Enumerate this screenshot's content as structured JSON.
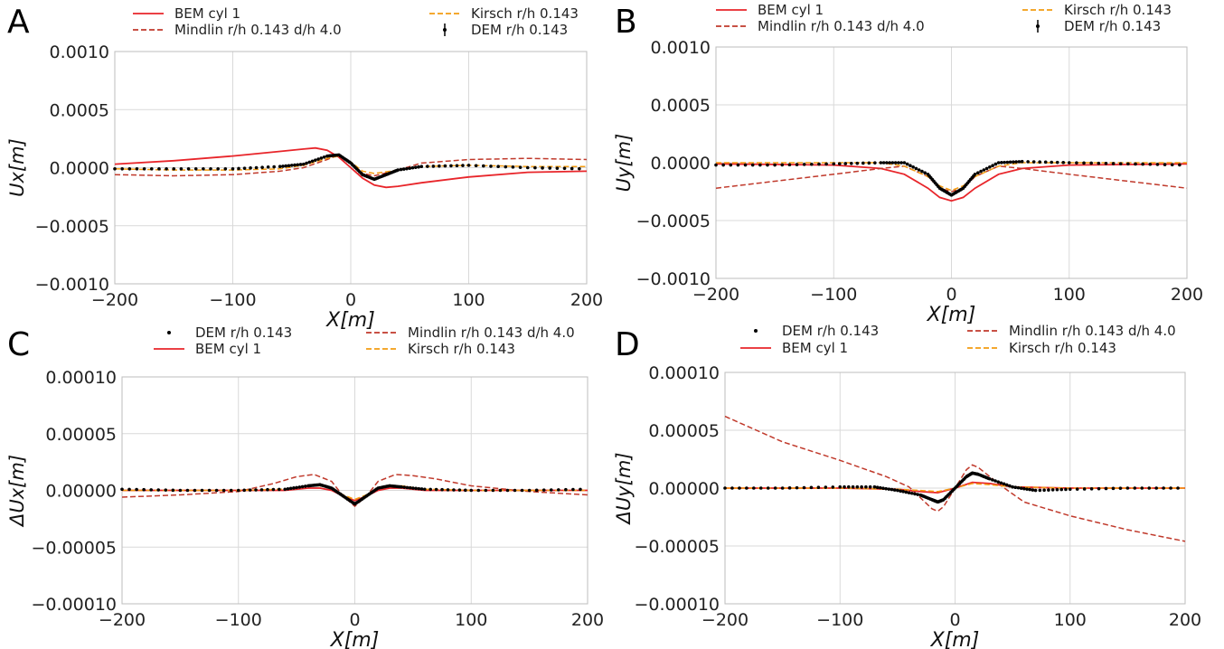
{
  "chart_data": [
    {
      "panel": "A",
      "type": "line",
      "xlabel": "X[m]",
      "ylabel": "Ux[m]",
      "xlim": [
        -200,
        200
      ],
      "ylim": [
        -0.001,
        0.001
      ],
      "xticks": [
        -200,
        -100,
        0,
        100,
        200
      ],
      "yticks": [
        -0.001,
        -0.0005,
        0.0,
        0.0005,
        0.001
      ],
      "ytick_labels": [
        "−0.0010",
        "−0.0005",
        "0.0000",
        "0.0005",
        "0.0010"
      ],
      "xtick_labels": [
        "−200",
        "−100",
        "0",
        "100",
        "200"
      ],
      "grid": true,
      "legend_layout": "two-column-top",
      "legend": [
        {
          "label": "BEM cyl 1",
          "style": "solid",
          "color": "#e8252a"
        },
        {
          "label": "Mindlin r/h 0.143 d/h 4.0",
          "style": "dashed",
          "color": "#c0392b"
        },
        {
          "label": "Kirsch r/h 0.143",
          "style": "dashed",
          "color": "#f39c12"
        },
        {
          "label": "DEM r/h 0.143",
          "style": "errorbar",
          "color": "#000000"
        }
      ],
      "series": [
        {
          "name": "BEM cyl 1",
          "style": "solid",
          "color": "#e8252a",
          "x": [
            -200,
            -150,
            -100,
            -60,
            -40,
            -30,
            -20,
            -10,
            0,
            10,
            20,
            30,
            40,
            60,
            100,
            150,
            200
          ],
          "y": [
            3e-05,
            6e-05,
            0.0001,
            0.00014,
            0.00016,
            0.00017,
            0.00015,
            9e-05,
            0.0,
            -9e-05,
            -0.00015,
            -0.00017,
            -0.00016,
            -0.00013,
            -8e-05,
            -4e-05,
            -3e-05
          ]
        },
        {
          "name": "Mindlin r/h 0.143 d/h 4.0",
          "style": "dashed",
          "color": "#c0392b",
          "x": [
            -200,
            -150,
            -100,
            -60,
            -40,
            -20,
            -10,
            0,
            10,
            20,
            40,
            60,
            100,
            150,
            200
          ],
          "y": [
            -6e-05,
            -7e-05,
            -6e-05,
            -3e-05,
            0.0,
            7e-05,
            0.00011,
            4e-05,
            -5e-05,
            -7e-05,
            -2e-05,
            4e-05,
            7e-05,
            8e-05,
            7e-05
          ]
        },
        {
          "name": "Kirsch r/h 0.143",
          "style": "dashed",
          "color": "#f39c12",
          "x": [
            -200,
            -150,
            -100,
            -60,
            -40,
            -20,
            -10,
            0,
            10,
            20,
            40,
            60,
            100,
            150,
            200
          ],
          "y": [
            -1e-05,
            -2e-05,
            -2e-05,
            -1e-05,
            2e-05,
            8e-05,
            0.0001,
            5e-05,
            -3e-05,
            -5e-05,
            -2e-05,
            1e-05,
            2e-05,
            1e-05,
            1e-05
          ]
        },
        {
          "name": "DEM r/h 0.143",
          "style": "dots",
          "color": "#000000",
          "x": [
            -200,
            -150,
            -100,
            -60,
            -40,
            -20,
            -10,
            0,
            10,
            20,
            30,
            40,
            60,
            100,
            150,
            200
          ],
          "y": [
            -1e-05,
            -1e-05,
            -1e-05,
            1e-05,
            3e-05,
            0.0001,
            0.00011,
            4e-05,
            -6e-05,
            -0.0001,
            -6e-05,
            -2e-05,
            1e-05,
            2e-05,
            0.0,
            -1e-05
          ]
        }
      ]
    },
    {
      "panel": "B",
      "type": "line",
      "xlabel": "X[m]",
      "ylabel": "Uy[m]",
      "xlim": [
        -200,
        200
      ],
      "ylim": [
        -0.001,
        0.001
      ],
      "xticks": [
        -200,
        -100,
        0,
        100,
        200
      ],
      "yticks": [
        -0.001,
        -0.0005,
        0.0,
        0.0005,
        0.001
      ],
      "ytick_labels": [
        "−0.0010",
        "−0.0005",
        "0.0000",
        "0.0005",
        "0.0010"
      ],
      "xtick_labels": [
        "−200",
        "−100",
        "0",
        "100",
        "200"
      ],
      "grid": true,
      "legend_layout": "two-column-top",
      "legend": [
        {
          "label": "BEM cyl 1",
          "style": "solid",
          "color": "#e8252a"
        },
        {
          "label": "Mindlin r/h 0.143 d/h 4.0",
          "style": "dashed",
          "color": "#c0392b"
        },
        {
          "label": "Kirsch r/h 0.143",
          "style": "dashed",
          "color": "#f39c12"
        },
        {
          "label": "DEM r/h 0.143",
          "style": "errorbar",
          "color": "#000000"
        }
      ],
      "series": [
        {
          "name": "BEM cyl 1",
          "style": "solid",
          "color": "#e8252a",
          "x": [
            -200,
            -100,
            -60,
            -40,
            -20,
            -10,
            0,
            10,
            20,
            40,
            60,
            100,
            200
          ],
          "y": [
            -1e-05,
            -2e-05,
            -5e-05,
            -0.0001,
            -0.00022,
            -0.0003,
            -0.00033,
            -0.0003,
            -0.00022,
            -0.0001,
            -5e-05,
            -2e-05,
            -1e-05
          ]
        },
        {
          "name": "Mindlin r/h 0.143 d/h 4.0",
          "style": "dashed",
          "color": "#c0392b",
          "x": [
            -200,
            -150,
            -100,
            -60,
            -40,
            -20,
            -10,
            0,
            10,
            20,
            40,
            60,
            100,
            150,
            200
          ],
          "y": [
            -0.00022,
            -0.00016,
            -0.0001,
            -5e-05,
            -3e-05,
            -0.00012,
            -0.00022,
            -0.00025,
            -0.00022,
            -0.00012,
            -3e-05,
            -5e-05,
            -0.0001,
            -0.00016,
            -0.00022
          ]
        },
        {
          "name": "Kirsch r/h 0.143",
          "style": "dashed",
          "color": "#f39c12",
          "x": [
            -200,
            -100,
            -60,
            -40,
            -20,
            -10,
            0,
            10,
            20,
            40,
            60,
            100,
            200
          ],
          "y": [
            0.0,
            0.0,
            0.0,
            -3e-05,
            -0.00012,
            -0.0002,
            -0.00024,
            -0.0002,
            -0.00012,
            -3e-05,
            0.0,
            0.0,
            0.0
          ]
        },
        {
          "name": "DEM r/h 0.143",
          "style": "dots",
          "color": "#000000",
          "x": [
            -200,
            -150,
            -100,
            -60,
            -40,
            -20,
            -10,
            0,
            10,
            20,
            40,
            60,
            100,
            150,
            200
          ],
          "y": [
            -2e-05,
            -2e-05,
            -1e-05,
            0.0,
            0.0,
            -0.0001,
            -0.00022,
            -0.00028,
            -0.00022,
            -0.0001,
            0.0,
            1e-05,
            0.0,
            -1e-05,
            -2e-05
          ]
        }
      ]
    },
    {
      "panel": "C",
      "type": "line",
      "xlabel": "X[m]",
      "ylabel": "ΔUx[m]",
      "xlim": [
        -200,
        200
      ],
      "ylim": [
        -0.0001,
        0.0001
      ],
      "xticks": [
        -200,
        -100,
        0,
        100,
        200
      ],
      "yticks": [
        -0.0001,
        -5e-05,
        0.0,
        5e-05,
        0.0001
      ],
      "ytick_labels": [
        "−0.00010",
        "−0.00005",
        "0.00000",
        "0.00005",
        "0.00010"
      ],
      "xtick_labels": [
        "−200",
        "−100",
        "0",
        "100",
        "200"
      ],
      "grid": true,
      "legend_layout": "two-column-top",
      "legend": [
        {
          "label": "DEM r/h 0.143",
          "style": "dot",
          "color": "#000000"
        },
        {
          "label": "BEM cyl 1",
          "style": "solid",
          "color": "#e8252a"
        },
        {
          "label": "Mindlin r/h 0.143 d/h 4.0",
          "style": "dashed",
          "color": "#c0392b"
        },
        {
          "label": "Kirsch r/h 0.143",
          "style": "dashed",
          "color": "#f39c12"
        }
      ],
      "series": [
        {
          "name": "BEM cyl 1",
          "style": "solid",
          "color": "#e8252a",
          "x": [
            -200,
            -100,
            -60,
            -40,
            -30,
            -20,
            -10,
            0,
            10,
            20,
            30,
            40,
            60,
            100,
            200
          ],
          "y": [
            0.0,
            0.0,
            0.0,
            2e-06,
            2e-06,
            0.0,
            -5e-06,
            -9e-06,
            -5e-06,
            0.0,
            2e-06,
            2e-06,
            0.0,
            0.0,
            0.0
          ]
        },
        {
          "name": "Mindlin r/h 0.143 d/h 4.0",
          "style": "dashed",
          "color": "#c0392b",
          "x": [
            -200,
            -150,
            -100,
            -70,
            -50,
            -35,
            -20,
            -10,
            0,
            10,
            20,
            35,
            50,
            70,
            100,
            150,
            200
          ],
          "y": [
            -6e-06,
            -4e-06,
            -1e-06,
            6e-06,
            1.2e-05,
            1.4e-05,
            8e-06,
            -5e-06,
            -1.4e-05,
            -5e-06,
            8e-06,
            1.4e-05,
            1.3e-05,
            1e-05,
            4e-06,
            -1e-06,
            -4e-06
          ]
        },
        {
          "name": "Kirsch r/h 0.143",
          "style": "dashed",
          "color": "#f39c12",
          "x": [
            -200,
            -100,
            -60,
            -40,
            -30,
            -20,
            -10,
            0,
            10,
            20,
            30,
            40,
            60,
            100,
            200
          ],
          "y": [
            0.0,
            0.0,
            1e-06,
            4e-06,
            4e-06,
            2e-06,
            -4e-06,
            -8e-06,
            -4e-06,
            2e-06,
            4e-06,
            4e-06,
            1e-06,
            0.0,
            0.0
          ]
        },
        {
          "name": "DEM r/h 0.143",
          "style": "dots",
          "color": "#000000",
          "x": [
            -200,
            -150,
            -100,
            -60,
            -40,
            -30,
            -20,
            -10,
            0,
            10,
            20,
            30,
            40,
            60,
            100,
            150,
            200
          ],
          "y": [
            1e-06,
            0.0,
            0.0,
            1e-06,
            4e-06,
            5e-06,
            2e-06,
            -5e-06,
            -1.2e-05,
            -5e-06,
            2e-06,
            4e-06,
            3e-06,
            1e-06,
            0.0,
            0.0,
            1e-06
          ]
        }
      ]
    },
    {
      "panel": "D",
      "type": "line",
      "xlabel": "X[m]",
      "ylabel": "ΔUy[m]",
      "xlim": [
        -200,
        200
      ],
      "ylim": [
        -0.0001,
        0.0001
      ],
      "xticks": [
        -200,
        -100,
        0,
        100,
        200
      ],
      "yticks": [
        -0.0001,
        -5e-05,
        0.0,
        5e-05,
        0.0001
      ],
      "ytick_labels": [
        "−0.00010",
        "−0.00005",
        "0.00000",
        "0.00005",
        "0.00010"
      ],
      "xtick_labels": [
        "−200",
        "−100",
        "0",
        "100",
        "200"
      ],
      "grid": true,
      "legend_layout": "two-column-top",
      "legend": [
        {
          "label": "DEM r/h 0.143",
          "style": "dot",
          "color": "#000000"
        },
        {
          "label": "BEM cyl 1",
          "style": "solid",
          "color": "#e8252a"
        },
        {
          "label": "Mindlin r/h 0.143 d/h 4.0",
          "style": "dashed",
          "color": "#c0392b"
        },
        {
          "label": "Kirsch r/h 0.143",
          "style": "dashed",
          "color": "#f39c12"
        }
      ],
      "series": [
        {
          "name": "BEM cyl 1",
          "style": "solid",
          "color": "#e8252a",
          "x": [
            -200,
            -100,
            -50,
            -30,
            -15,
            0,
            15,
            30,
            50,
            100,
            200
          ],
          "y": [
            0.0,
            0.0,
            -1e-06,
            -3e-06,
            -4e-06,
            0.0,
            5e-06,
            4e-06,
            1e-06,
            0.0,
            0.0
          ]
        },
        {
          "name": "Mindlin r/h 0.143 d/h 4.0",
          "style": "dashed",
          "color": "#c0392b",
          "x": [
            -200,
            -150,
            -100,
            -60,
            -40,
            -20,
            -15,
            -10,
            0,
            10,
            15,
            20,
            40,
            60,
            100,
            150,
            200
          ],
          "y": [
            6.2e-05,
            4e-05,
            2.4e-05,
            1e-05,
            1e-06,
            -1.8e-05,
            -2e-05,
            -1.6e-05,
            0.0,
            1.6e-05,
            2e-05,
            1.8e-05,
            2e-06,
            -1.2e-05,
            -2.4e-05,
            -3.6e-05,
            -4.6e-05
          ]
        },
        {
          "name": "Kirsch r/h 0.143",
          "style": "dashed",
          "color": "#f39c12",
          "x": [
            -200,
            -100,
            -50,
            -30,
            -15,
            0,
            15,
            30,
            50,
            100,
            200
          ],
          "y": [
            0.0,
            0.0,
            -1e-06,
            -2e-06,
            -3e-06,
            0.0,
            4e-06,
            3e-06,
            1e-06,
            0.0,
            0.0
          ]
        },
        {
          "name": "DEM r/h 0.143",
          "style": "dots",
          "color": "#000000",
          "x": [
            -200,
            -150,
            -100,
            -70,
            -50,
            -30,
            -20,
            -15,
            -10,
            0,
            10,
            15,
            20,
            30,
            50,
            70,
            100,
            150,
            200
          ],
          "y": [
            0.0,
            0.0,
            1e-06,
            1e-06,
            -2e-06,
            -6e-06,
            -1e-05,
            -1.2e-05,
            -1e-05,
            0.0,
            1e-05,
            1.3e-05,
            1.2e-05,
            8e-06,
            1e-06,
            -2e-06,
            -1e-06,
            0.0,
            0.0
          ]
        }
      ]
    }
  ]
}
